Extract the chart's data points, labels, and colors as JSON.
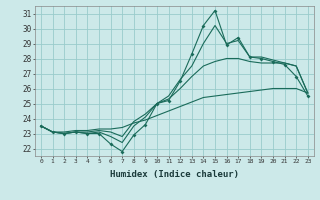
{
  "title": "",
  "xlabel": "Humidex (Indice chaleur)",
  "xlim": [
    -0.5,
    23.5
  ],
  "ylim": [
    21.5,
    31.5
  ],
  "xticks": [
    0,
    1,
    2,
    3,
    4,
    5,
    6,
    7,
    8,
    9,
    10,
    11,
    12,
    13,
    14,
    15,
    16,
    17,
    18,
    19,
    20,
    21,
    22,
    23
  ],
  "yticks": [
    22,
    23,
    24,
    25,
    26,
    27,
    28,
    29,
    30,
    31
  ],
  "bg_color": "#cce9e9",
  "grid_color": "#99cccc",
  "line_color": "#1a6b5a",
  "series": [
    {
      "y": [
        23.5,
        23.1,
        23.0,
        23.1,
        23.0,
        23.0,
        22.3,
        21.8,
        22.9,
        23.6,
        25.0,
        25.2,
        26.5,
        28.3,
        30.2,
        31.2,
        28.9,
        29.4,
        28.1,
        28.0,
        27.8,
        27.6,
        26.8,
        25.5
      ],
      "marker_x": [
        0,
        1,
        2,
        3,
        4,
        5,
        6,
        7,
        8,
        9,
        10,
        11,
        12,
        13,
        14,
        15,
        16,
        17,
        18,
        19,
        20,
        21,
        22,
        23
      ],
      "has_markers": true
    },
    {
      "y": [
        23.5,
        23.1,
        23.0,
        23.1,
        23.0,
        23.1,
        22.8,
        22.4,
        23.5,
        24.1,
        25.0,
        25.5,
        26.6,
        27.5,
        29.0,
        30.2,
        29.0,
        29.2,
        28.1,
        28.1,
        27.9,
        27.7,
        27.5,
        25.7
      ],
      "has_markers": false
    },
    {
      "y": [
        23.5,
        23.1,
        23.0,
        23.1,
        23.1,
        23.2,
        23.1,
        22.8,
        23.8,
        24.3,
        25.0,
        25.3,
        26.0,
        26.8,
        27.5,
        27.8,
        28.0,
        28.0,
        27.8,
        27.7,
        27.7,
        27.7,
        27.5,
        25.7
      ],
      "has_markers": false
    },
    {
      "y": [
        23.5,
        23.1,
        23.1,
        23.2,
        23.2,
        23.3,
        23.3,
        23.4,
        23.7,
        23.9,
        24.2,
        24.5,
        24.8,
        25.1,
        25.4,
        25.5,
        25.6,
        25.7,
        25.8,
        25.9,
        26.0,
        26.0,
        26.0,
        25.7
      ],
      "has_markers": false
    }
  ]
}
